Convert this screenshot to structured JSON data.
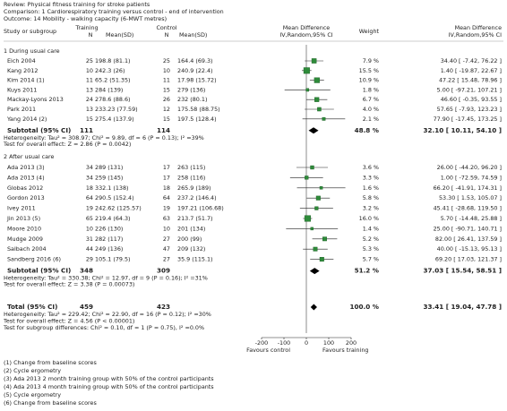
{
  "chart_data": {
    "type": "forest",
    "review": "Review:   Physical fitness training for stroke patients",
    "comparison": "Comparison:   1 Cardiorespiratory training versus control - end of intervention",
    "outcome": "Outcome:   14 Mobility - walking capacity (6-MWT metres)",
    "headers": {
      "study": "Study or subgroup",
      "training": "Training",
      "control": "Control",
      "n": "N",
      "mean_sd": "Mean(SD)",
      "md": "Mean Difference",
      "method": "IV,Random,95% CI",
      "weight": "Weight"
    },
    "xlim": [
      -200,
      200
    ],
    "xticks": [
      -200,
      -100,
      0,
      100,
      200
    ],
    "favours_left": "Favours control",
    "favours_right": "Favours training",
    "groups": [
      {
        "title": "1 During usual care",
        "studies": [
          {
            "name": "Eich 2004",
            "t_n": 25,
            "t_mean": "198.8 (81.1)",
            "c_n": 25,
            "c_mean": "164.4 (69.3)",
            "weight": 7.9,
            "weight_label": "7.9 %",
            "md": 34.4,
            "ci": [
              -7.42,
              76.22
            ],
            "md_label": "34.40 [ -7.42, 76.22 ]"
          },
          {
            "name": "Kang 2012",
            "t_n": 10,
            "t_mean": "242.3 (26)",
            "c_n": 10,
            "c_mean": "240.9 (22.4)",
            "weight": 15.5,
            "weight_label": "15.5 %",
            "md": 1.4,
            "ci": [
              -19.87,
              22.67
            ],
            "md_label": "1.40 [ -19.87, 22.67 ]"
          },
          {
            "name": "Kim 2014 (1)",
            "t_n": 11,
            "t_mean": "65.2 (51.35)",
            "c_n": 11,
            "c_mean": "17.98 (15.72)",
            "weight": 10.9,
            "weight_label": "10.9 %",
            "md": 47.22,
            "ci": [
              15.48,
              78.96
            ],
            "md_label": "47.22 [ 15.48, 78.96 ]"
          },
          {
            "name": "Kuys 2011",
            "t_n": 13,
            "t_mean": "284 (139)",
            "c_n": 15,
            "c_mean": "279 (136)",
            "weight": 1.8,
            "weight_label": "1.8 %",
            "md": 5,
            "ci": [
              -97.21,
              107.21
            ],
            "md_label": "5.00 [ -97.21, 107.21 ]"
          },
          {
            "name": "Mackay-Lyons 2013",
            "t_n": 24,
            "t_mean": "278.6 (88.6)",
            "c_n": 26,
            "c_mean": "232 (80.1)",
            "weight": 6.7,
            "weight_label": "6.7 %",
            "md": 46.6,
            "ci": [
              -0.35,
              93.55
            ],
            "md_label": "46.60 [ -0.35, 93.55 ]"
          },
          {
            "name": "Park 2011",
            "t_n": 13,
            "t_mean": "233.23 (77.59)",
            "c_n": 12,
            "c_mean": "175.58 (88.75)",
            "weight": 4,
            "weight_label": "4.0 %",
            "md": 57.65,
            "ci": [
              -7.93,
              123.23
            ],
            "md_label": "57.65 [ -7.93, 123.23 ]"
          },
          {
            "name": "Yang 2014 (2)",
            "t_n": 15,
            "t_mean": "275.4 (137.9)",
            "c_n": 15,
            "c_mean": "197.5 (128.4)",
            "weight": 2.1,
            "weight_label": "2.1 %",
            "md": 77.9,
            "ci": [
              -17.45,
              173.25
            ],
            "md_label": "77.90 [ -17.45, 173.25 ]"
          }
        ],
        "subtotal": {
          "name": "Subtotal (95% CI)",
          "t_n": 111,
          "c_n": 114,
          "weight": 48.8,
          "weight_label": "48.8 %",
          "md": 32.1,
          "ci": [
            10.11,
            54.1
          ],
          "md_label": "32.10 [ 10.11, 54.10 ]"
        },
        "heterogeneity": "Heterogeneity: Tau² = 308.97; Chi² = 9.89, df = 6 (P = 0.13); I² =39%",
        "overall_effect": "Test for overall effect: Z = 2.86 (P = 0.0042)"
      },
      {
        "title": "2 After usual care",
        "studies": [
          {
            "name": "Ada 2013 (3)",
            "t_n": 34,
            "t_mean": "289 (131)",
            "c_n": 17,
            "c_mean": "263 (115)",
            "weight": 3.6,
            "weight_label": "3.6 %",
            "md": 26,
            "ci": [
              -44.2,
              96.2
            ],
            "md_label": "26.00 [ -44.20, 96.20 ]"
          },
          {
            "name": "Ada 2013 (4)",
            "t_n": 34,
            "t_mean": "259 (145)",
            "c_n": 17,
            "c_mean": "258 (116)",
            "weight": 3.3,
            "weight_label": "3.3 %",
            "md": 1,
            "ci": [
              -72.59,
              74.59
            ],
            "md_label": "1.00 [ -72.59, 74.59 ]"
          },
          {
            "name": "Globas 2012",
            "t_n": 18,
            "t_mean": "332.1 (138)",
            "c_n": 18,
            "c_mean": "265.9 (189)",
            "weight": 1.6,
            "weight_label": "1.6 %",
            "md": 66.2,
            "ci": [
              -41.91,
              174.31
            ],
            "md_label": "66.20 [ -41.91, 174.31 ]"
          },
          {
            "name": "Gordon 2013",
            "t_n": 64,
            "t_mean": "290.5 (152.4)",
            "c_n": 64,
            "c_mean": "237.2 (146.4)",
            "weight": 5.8,
            "weight_label": "5.8 %",
            "md": 53.3,
            "ci": [
              1.53,
              105.07
            ],
            "md_label": "53.30 [ 1.53, 105.07 ]"
          },
          {
            "name": "Ivey 2011",
            "t_n": 19,
            "t_mean": "242.62 (125.57)",
            "c_n": 19,
            "c_mean": "197.21 (106.68)",
            "weight": 3.2,
            "weight_label": "3.2 %",
            "md": 45.41,
            "ci": [
              -28.68,
              119.5
            ],
            "md_label": "45.41 [ -28.68, 119.50 ]"
          },
          {
            "name": "Jin 2013 (5)",
            "t_n": 65,
            "t_mean": "219.4 (64.3)",
            "c_n": 63,
            "c_mean": "213.7 (51.7)",
            "weight": 16,
            "weight_label": "16.0 %",
            "md": 5.7,
            "ci": [
              -14.48,
              25.88
            ],
            "md_label": "5.70 [ -14.48, 25.88 ]"
          },
          {
            "name": "Moore 2010",
            "t_n": 10,
            "t_mean": "226 (130)",
            "c_n": 10,
            "c_mean": "201 (134)",
            "weight": 1.4,
            "weight_label": "1.4 %",
            "md": 25,
            "ci": [
              -90.71,
              140.71
            ],
            "md_label": "25.00 [ -90.71, 140.71 ]"
          },
          {
            "name": "Mudge 2009",
            "t_n": 31,
            "t_mean": "282 (117)",
            "c_n": 27,
            "c_mean": "200 (99)",
            "weight": 5.2,
            "weight_label": "5.2 %",
            "md": 82,
            "ci": [
              26.41,
              137.59
            ],
            "md_label": "82.00 [ 26.41, 137.59 ]"
          },
          {
            "name": "Salbach 2004",
            "t_n": 44,
            "t_mean": "249 (136)",
            "c_n": 47,
            "c_mean": "209 (132)",
            "weight": 5.3,
            "weight_label": "5.3 %",
            "md": 40,
            "ci": [
              -15.13,
              95.13
            ],
            "md_label": "40.00 [ -15.13, 95.13 ]"
          },
          {
            "name": "Sandberg 2016 (6)",
            "t_n": 29,
            "t_mean": "105.1 (79.5)",
            "c_n": 27,
            "c_mean": "35.9 (115.1)",
            "weight": 5.7,
            "weight_label": "5.7 %",
            "md": 69.2,
            "ci": [
              17.03,
              121.37
            ],
            "md_label": "69.20 [ 17.03, 121.37 ]"
          }
        ],
        "subtotal": {
          "name": "Subtotal (95% CI)",
          "t_n": 348,
          "c_n": 309,
          "weight": 51.2,
          "weight_label": "51.2 %",
          "md": 37.03,
          "ci": [
            15.54,
            58.51
          ],
          "md_label": "37.03 [ 15.54, 58.51 ]"
        },
        "heterogeneity": "Heterogeneity: Tau² = 330.38; Chi² = 12.97, df = 9 (P = 0.16); I² =31%",
        "overall_effect": "Test for overall effect: Z = 3.38 (P = 0.00073)"
      }
    ],
    "total": {
      "name": "Total (95% CI)",
      "t_n": 459,
      "c_n": 423,
      "weight": 100,
      "weight_label": "100.0 %",
      "md": 33.41,
      "ci": [
        19.04,
        47.78
      ],
      "md_label": "33.41 [ 19.04, 47.78 ]"
    },
    "total_notes": [
      "Heterogeneity: Tau² = 229.42; Chi² = 22.90, df = 16 (P = 0.12); I² =30%",
      "Test for overall effect: Z = 4.56 (P < 0.00001)",
      "Test for subgroup differences: Chi² = 0.10, df = 1 (P = 0.75), I² =0.0%"
    ],
    "footnotes": [
      "(1) Change from baseline scores",
      "(2) Cycle ergometry",
      "(3) Ada 2013 2 month training group with 50% of the control participants",
      "(4) Ada 2013 4 month training group with 50% of the control participants",
      "(5) Cycle ergometry",
      "(6) Change from baseline scores"
    ]
  }
}
